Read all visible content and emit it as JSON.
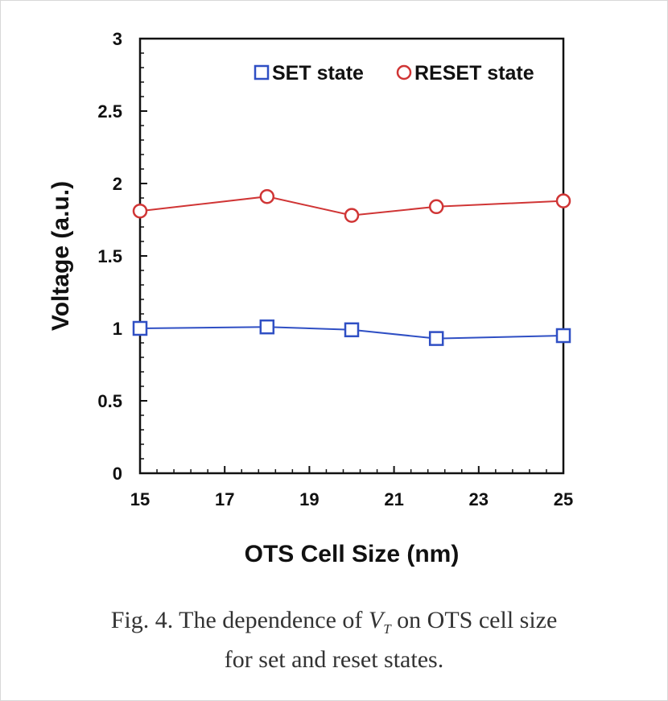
{
  "chart_data": {
    "type": "line",
    "xlabel": "OTS Cell Size (nm)",
    "ylabel": "Voltage (a.u.)",
    "xlim": [
      15,
      25
    ],
    "ylim": [
      0,
      3
    ],
    "xticks": [
      "15",
      "17",
      "19",
      "21",
      "23",
      "25"
    ],
    "yticks": [
      "0",
      "0.5",
      "1",
      "1.5",
      "2",
      "2.5",
      "3"
    ],
    "legend_position": "top-right",
    "grid": false,
    "series": [
      {
        "name": "SET state",
        "marker": "square",
        "color": "#2f4fc4",
        "x": [
          15,
          18,
          20,
          22,
          25
        ],
        "y": [
          1.0,
          1.01,
          0.99,
          0.93,
          0.95
        ]
      },
      {
        "name": "RESET state",
        "marker": "circle",
        "color": "#d03535",
        "x": [
          15,
          18,
          20,
          22,
          25
        ],
        "y": [
          1.81,
          1.91,
          1.78,
          1.84,
          1.88
        ]
      }
    ]
  },
  "caption": {
    "prefix": "Fig. 4. The dependence of ",
    "symbol": "V",
    "subscript": "T",
    "suffix": " on OTS cell size",
    "line2": "for set and reset states."
  }
}
